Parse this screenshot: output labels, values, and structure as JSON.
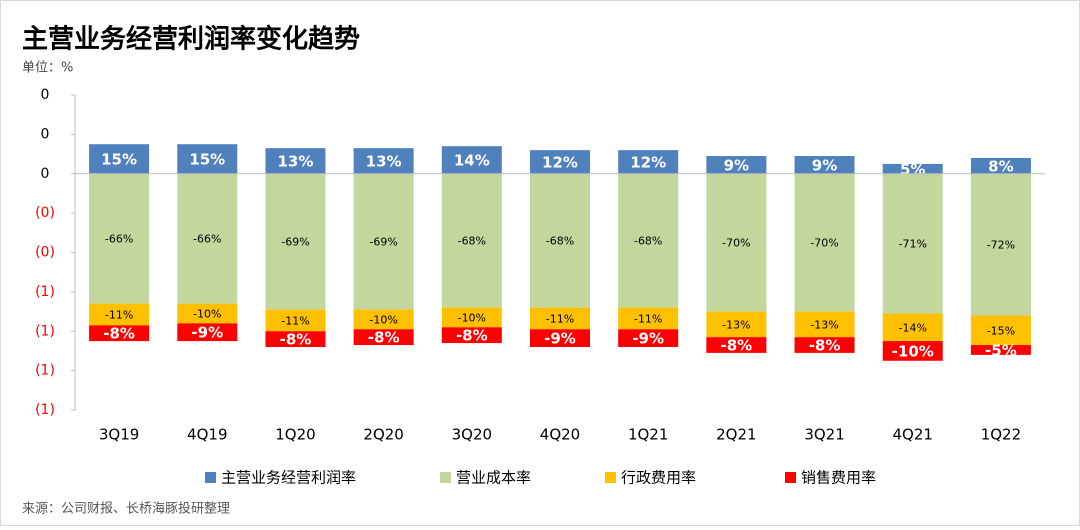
{
  "chart_data": {
    "type": "stacked-bar",
    "title": "主营业务经营利润率变化趋势",
    "subtitle": "单位：%",
    "source": "来源：公司财报、长桥海豚投研整理",
    "categories": [
      "3Q19",
      "4Q19",
      "1Q20",
      "2Q20",
      "3Q20",
      "4Q20",
      "1Q21",
      "2Q21",
      "3Q21",
      "4Q21",
      "1Q22"
    ],
    "ylim": [
      -1.2,
      0.4
    ],
    "yticks": [
      {
        "value": 0.4,
        "label": "0"
      },
      {
        "value": 0.2,
        "label": "0"
      },
      {
        "value": 0,
        "label": "0"
      },
      {
        "value": -0.2,
        "label": "(0)"
      },
      {
        "value": -0.4,
        "label": "(0)"
      },
      {
        "value": -0.6,
        "label": "(1)"
      },
      {
        "value": -0.8,
        "label": "(1)"
      },
      {
        "value": -1.0,
        "label": "(1)"
      },
      {
        "value": -1.2,
        "label": "(1)"
      }
    ],
    "grid": false,
    "legend": "bottom",
    "series": [
      {
        "name": "主营业务经营利润率",
        "color": "#4f81bd",
        "values": [
          0.15,
          0.15,
          0.13,
          0.13,
          0.14,
          0.12,
          0.12,
          0.09,
          0.09,
          0.05,
          0.08
        ],
        "value_labels": [
          "15%",
          "15%",
          "13%",
          "13%",
          "14%",
          "12%",
          "12%",
          "9%",
          "9%",
          "5%",
          "8%"
        ]
      },
      {
        "name": "营业成本率",
        "color": "#c3d69b",
        "values": [
          -0.66,
          -0.66,
          -0.69,
          -0.69,
          -0.68,
          -0.68,
          -0.68,
          -0.7,
          -0.7,
          -0.71,
          -0.72
        ],
        "value_labels": [
          "-66%",
          "-66%",
          "-69%",
          "-69%",
          "-68%",
          "-68%",
          "-68%",
          "-70%",
          "-70%",
          "-71%",
          "-72%"
        ]
      },
      {
        "name": "行政费用率",
        "color": "#ffc000",
        "values": [
          -0.11,
          -0.1,
          -0.11,
          -0.1,
          -0.1,
          -0.11,
          -0.11,
          -0.13,
          -0.13,
          -0.14,
          -0.15
        ],
        "value_labels": [
          "-11%",
          "-10%",
          "-11%",
          "-10%",
          "-10%",
          "-11%",
          "-11%",
          "-13%",
          "-13%",
          "-14%",
          "-15%"
        ]
      },
      {
        "name": "销售费用率",
        "color": "#ff0000",
        "values": [
          -0.08,
          -0.09,
          -0.08,
          -0.08,
          -0.08,
          -0.09,
          -0.09,
          -0.08,
          -0.08,
          -0.1,
          -0.05
        ],
        "value_labels": [
          "-8%",
          "-9%",
          "-8%",
          "-8%",
          "-8%",
          "-9%",
          "-9%",
          "-8%",
          "-8%",
          "-10%",
          "-5%"
        ]
      }
    ]
  }
}
